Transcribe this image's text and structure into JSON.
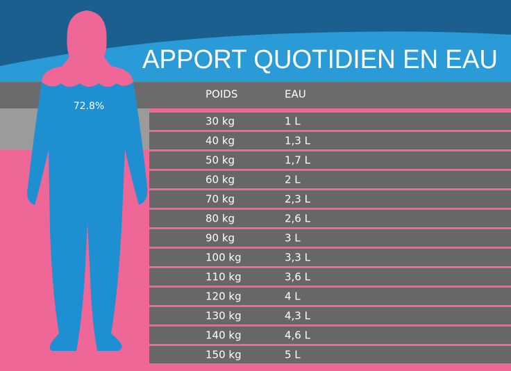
{
  "title": "APPORT QUOTIDIEN EN EAU",
  "figure_label": "72.8%",
  "table": {
    "columns": [
      "POIDS",
      "EAU"
    ],
    "rows": [
      [
        "30 kg",
        "1 L"
      ],
      [
        "40 kg",
        "1,3 L"
      ],
      [
        "50 kg",
        "1,7 L"
      ],
      [
        "60 kg",
        "2 L"
      ],
      [
        "70 kg",
        "2,3 L"
      ],
      [
        "80 kg",
        "2,6 L"
      ],
      [
        "90 kg",
        "3 L"
      ],
      [
        "100 kg",
        "3,3 L"
      ],
      [
        "110 kg",
        "3,6 L"
      ],
      [
        "120 kg",
        "4 L"
      ],
      [
        "130 kg",
        "4,3 L"
      ],
      [
        "140 kg",
        "4,6 L"
      ],
      [
        "150 kg",
        "5 L"
      ]
    ]
  }
}
